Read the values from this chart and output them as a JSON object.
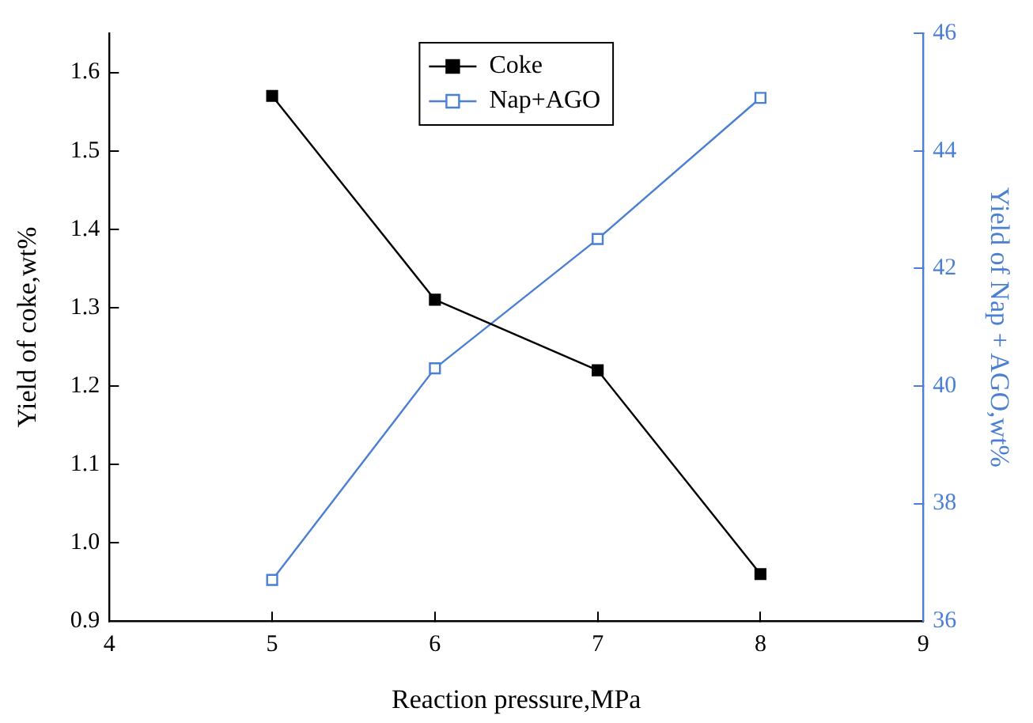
{
  "chart_data": {
    "type": "line",
    "xlabel": "Reaction pressure,MPa",
    "ylabel": "Yield of coke,wt%",
    "y2label": "Yield of Nap + AGO,wt%",
    "x": [
      5,
      6,
      7,
      8
    ],
    "series": [
      {
        "name": "Coke",
        "color": "#000000",
        "values": [
          1.57,
          1.31,
          1.22,
          0.96
        ],
        "marker": "square"
      },
      {
        "name": "Nap+AGO",
        "color": "#4a7fd4",
        "values": [
          36.7,
          40.3,
          42.5,
          44.9
        ],
        "axis": "y2",
        "marker": "square"
      }
    ],
    "xlim": [
      4,
      9
    ],
    "xticks": [
      4,
      5,
      6,
      7,
      8,
      9
    ],
    "ylim": [
      0.9,
      1.65
    ],
    "yticks": [
      0.9,
      {
        "value": 1,
        "label": "1.0"
      },
      1.1,
      1.2,
      1.3,
      1.4,
      1.5,
      1.6
    ],
    "y2lim": [
      36,
      46
    ],
    "y2ticks": [
      36,
      38,
      40,
      42,
      44,
      46
    ],
    "legend": "top",
    "grid": false,
    "line_style": "solid"
  }
}
